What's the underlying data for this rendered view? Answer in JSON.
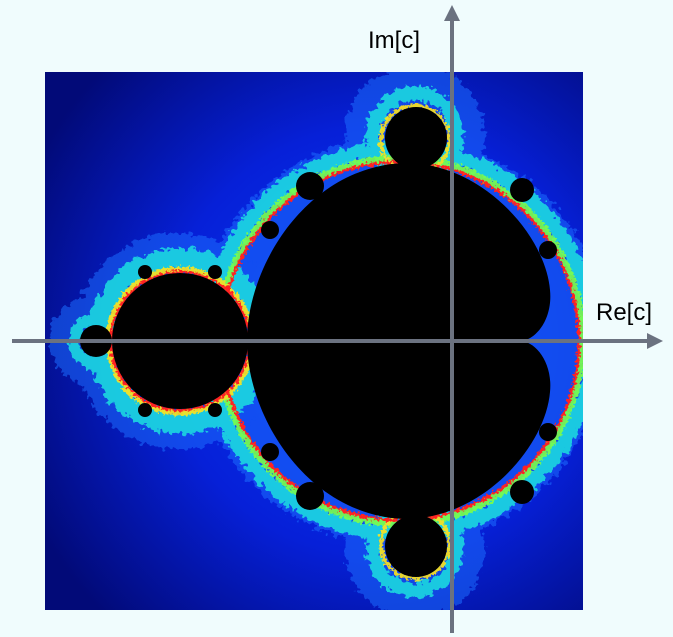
{
  "figure": {
    "x_axis_label": "Re[c]",
    "y_axis_label": "Im[c]"
  },
  "colors": {
    "page_background": "#f0fcfd",
    "set_interior": "#000000",
    "axis": "#6b7280",
    "escape_palette": [
      "#020a78",
      "#0418c8",
      "#0a3cf5",
      "#1e90ff",
      "#1ee0e0",
      "#7cff4a",
      "#ffe41a",
      "#ff2020"
    ]
  }
}
